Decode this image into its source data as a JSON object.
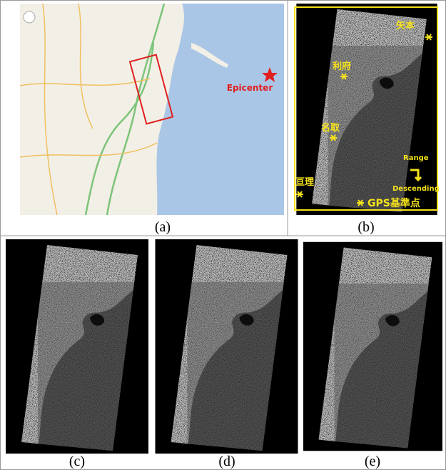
{
  "map": {
    "caption": "(a)",
    "epicenter": "Epicenter"
  },
  "gps_image": {
    "caption": "(b)",
    "stations": [
      "矢本",
      "利府",
      "名取",
      "亘理"
    ],
    "range": "Range",
    "direction": "Descending",
    "legend": "GPS基準点"
  },
  "bottom_captions": [
    "(c)",
    "(d)",
    "(e)"
  ]
}
